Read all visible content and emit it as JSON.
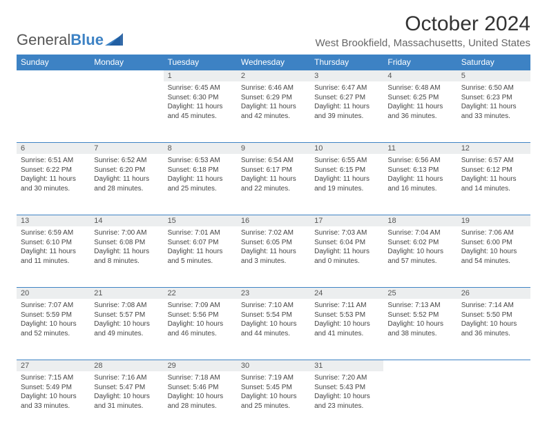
{
  "brand": {
    "part1": "General",
    "part2": "Blue"
  },
  "title": "October 2024",
  "location": "West Brookfield, Massachusetts, United States",
  "colors": {
    "header_bg": "#3d82c4",
    "header_text": "#ffffff",
    "daynum_bg": "#eceeef",
    "border": "#3d82c4",
    "body_text": "#444444"
  },
  "day_headers": [
    "Sunday",
    "Monday",
    "Tuesday",
    "Wednesday",
    "Thursday",
    "Friday",
    "Saturday"
  ],
  "weeks": [
    [
      null,
      null,
      {
        "n": "1",
        "sr": "6:45 AM",
        "ss": "6:30 PM",
        "dl": "11 hours and 45 minutes."
      },
      {
        "n": "2",
        "sr": "6:46 AM",
        "ss": "6:29 PM",
        "dl": "11 hours and 42 minutes."
      },
      {
        "n": "3",
        "sr": "6:47 AM",
        "ss": "6:27 PM",
        "dl": "11 hours and 39 minutes."
      },
      {
        "n": "4",
        "sr": "6:48 AM",
        "ss": "6:25 PM",
        "dl": "11 hours and 36 minutes."
      },
      {
        "n": "5",
        "sr": "6:50 AM",
        "ss": "6:23 PM",
        "dl": "11 hours and 33 minutes."
      }
    ],
    [
      {
        "n": "6",
        "sr": "6:51 AM",
        "ss": "6:22 PM",
        "dl": "11 hours and 30 minutes."
      },
      {
        "n": "7",
        "sr": "6:52 AM",
        "ss": "6:20 PM",
        "dl": "11 hours and 28 minutes."
      },
      {
        "n": "8",
        "sr": "6:53 AM",
        "ss": "6:18 PM",
        "dl": "11 hours and 25 minutes."
      },
      {
        "n": "9",
        "sr": "6:54 AM",
        "ss": "6:17 PM",
        "dl": "11 hours and 22 minutes."
      },
      {
        "n": "10",
        "sr": "6:55 AM",
        "ss": "6:15 PM",
        "dl": "11 hours and 19 minutes."
      },
      {
        "n": "11",
        "sr": "6:56 AM",
        "ss": "6:13 PM",
        "dl": "11 hours and 16 minutes."
      },
      {
        "n": "12",
        "sr": "6:57 AM",
        "ss": "6:12 PM",
        "dl": "11 hours and 14 minutes."
      }
    ],
    [
      {
        "n": "13",
        "sr": "6:59 AM",
        "ss": "6:10 PM",
        "dl": "11 hours and 11 minutes."
      },
      {
        "n": "14",
        "sr": "7:00 AM",
        "ss": "6:08 PM",
        "dl": "11 hours and 8 minutes."
      },
      {
        "n": "15",
        "sr": "7:01 AM",
        "ss": "6:07 PM",
        "dl": "11 hours and 5 minutes."
      },
      {
        "n": "16",
        "sr": "7:02 AM",
        "ss": "6:05 PM",
        "dl": "11 hours and 3 minutes."
      },
      {
        "n": "17",
        "sr": "7:03 AM",
        "ss": "6:04 PM",
        "dl": "11 hours and 0 minutes."
      },
      {
        "n": "18",
        "sr": "7:04 AM",
        "ss": "6:02 PM",
        "dl": "10 hours and 57 minutes."
      },
      {
        "n": "19",
        "sr": "7:06 AM",
        "ss": "6:00 PM",
        "dl": "10 hours and 54 minutes."
      }
    ],
    [
      {
        "n": "20",
        "sr": "7:07 AM",
        "ss": "5:59 PM",
        "dl": "10 hours and 52 minutes."
      },
      {
        "n": "21",
        "sr": "7:08 AM",
        "ss": "5:57 PM",
        "dl": "10 hours and 49 minutes."
      },
      {
        "n": "22",
        "sr": "7:09 AM",
        "ss": "5:56 PM",
        "dl": "10 hours and 46 minutes."
      },
      {
        "n": "23",
        "sr": "7:10 AM",
        "ss": "5:54 PM",
        "dl": "10 hours and 44 minutes."
      },
      {
        "n": "24",
        "sr": "7:11 AM",
        "ss": "5:53 PM",
        "dl": "10 hours and 41 minutes."
      },
      {
        "n": "25",
        "sr": "7:13 AM",
        "ss": "5:52 PM",
        "dl": "10 hours and 38 minutes."
      },
      {
        "n": "26",
        "sr": "7:14 AM",
        "ss": "5:50 PM",
        "dl": "10 hours and 36 minutes."
      }
    ],
    [
      {
        "n": "27",
        "sr": "7:15 AM",
        "ss": "5:49 PM",
        "dl": "10 hours and 33 minutes."
      },
      {
        "n": "28",
        "sr": "7:16 AM",
        "ss": "5:47 PM",
        "dl": "10 hours and 31 minutes."
      },
      {
        "n": "29",
        "sr": "7:18 AM",
        "ss": "5:46 PM",
        "dl": "10 hours and 28 minutes."
      },
      {
        "n": "30",
        "sr": "7:19 AM",
        "ss": "5:45 PM",
        "dl": "10 hours and 25 minutes."
      },
      {
        "n": "31",
        "sr": "7:20 AM",
        "ss": "5:43 PM",
        "dl": "10 hours and 23 minutes."
      },
      null,
      null
    ]
  ],
  "labels": {
    "sunrise": "Sunrise:",
    "sunset": "Sunset:",
    "daylight": "Daylight:"
  }
}
